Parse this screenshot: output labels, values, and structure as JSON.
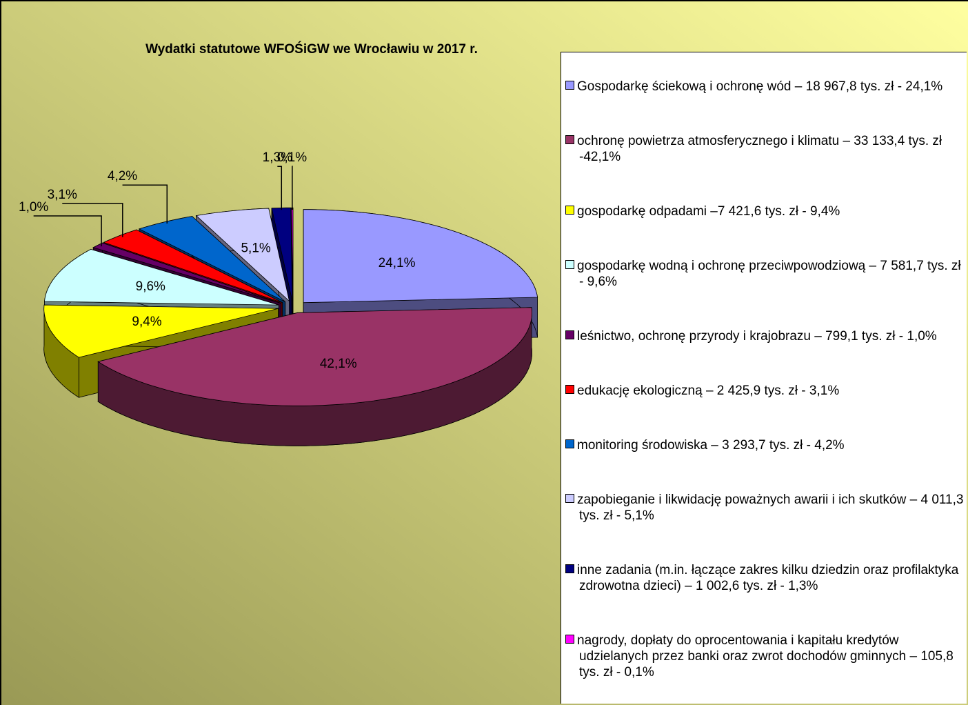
{
  "chart_data": {
    "type": "pie",
    "title": "Wydatki statutowe WFOŚiGW we Wrocławiu w 2017 r.",
    "categories": [
      "Gospodarkę ściekową i ochronę wód –  18 967,8 tys. zł - 24,1%",
      "ochronę powietrza atmosferycznego i klimatu – 33 133,4 tys. zł -42,1%",
      "gospodarkę odpadami –7 421,6 tys. zł - 9,4%",
      "gospodarkę wodną i ochronę przeciwpowodziową – 7 581,7 tys. zł - 9,6%",
      "leśnictwo, ochronę przyrody i krajobrazu –  799,1 tys. zł - 1,0%",
      "edukację ekologiczną –  2 425,9 tys. zł - 3,1%",
      "monitoring środowiska – 3 293,7 tys. zł - 4,2%",
      "zapobieganie i likwidację poważnych awarii i ich skutków –  4 011,3 tys. zł - 5,1%",
      "inne zadania (m.in. łączące zakres kilku dziedzin oraz profilaktyka zdrowotna dzieci) –  1 002,6 tys. zł - 1,3%",
      "nagrody, dopłaty do oprocentowania i kapitału kredytów udzielanych przez banki oraz zwrot dochodów gminnych – 105,8 tys. zł - 0,1%"
    ],
    "values": [
      24.1,
      42.1,
      9.4,
      9.6,
      1.0,
      3.1,
      4.2,
      5.1,
      1.3,
      0.1
    ],
    "value_labels": [
      "24,1%",
      "42,1%",
      "9,4%",
      "9,6%",
      "1,0%",
      "3,1%",
      "4,2%",
      "5,1%",
      "1,3%",
      "0,1%"
    ],
    "colors": [
      "#9999ff",
      "#993366",
      "#ffff00",
      "#ccffff",
      "#660066",
      "#ff0000",
      "#0066cc",
      "#ccccff",
      "#000080",
      "#ff00ff"
    ]
  }
}
